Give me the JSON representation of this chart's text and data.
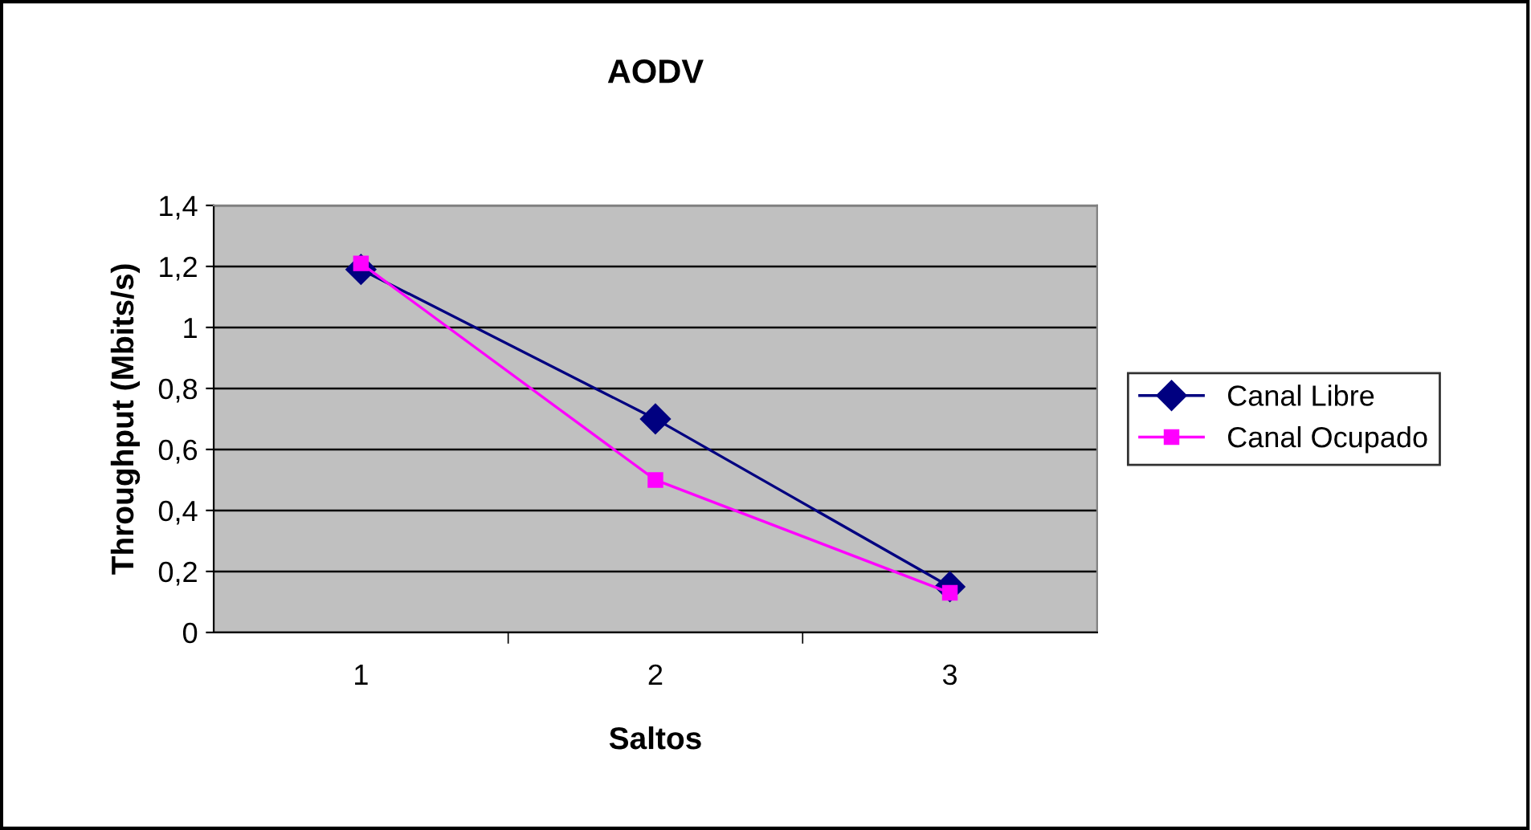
{
  "chart_data": {
    "type": "line",
    "title": "AODV",
    "xlabel": "Saltos",
    "ylabel": "Throughput (Mbits/s)",
    "categories": [
      "1",
      "2",
      "3"
    ],
    "series": [
      {
        "name": "Canal Libre",
        "color": "#000080",
        "marker": "diamond",
        "values": [
          1.19,
          0.7,
          0.15
        ]
      },
      {
        "name": "Canal Ocupado",
        "color": "#ff00ff",
        "marker": "square",
        "values": [
          1.21,
          0.5,
          0.13
        ]
      }
    ],
    "ylim": [
      0,
      1.4
    ],
    "yticks": [
      0,
      {
        "value": 0.2,
        "label": "0,2"
      },
      {
        "value": 0.4,
        "label": "0,4"
      },
      {
        "value": 0.6,
        "label": "0,6"
      },
      {
        "value": 0.8,
        "label": "0,8"
      },
      1,
      {
        "value": 1.2,
        "label": "1,2"
      },
      {
        "value": 1.4,
        "label": "1,4"
      }
    ],
    "grid": "y",
    "legend": "right",
    "line_style": "solid"
  }
}
